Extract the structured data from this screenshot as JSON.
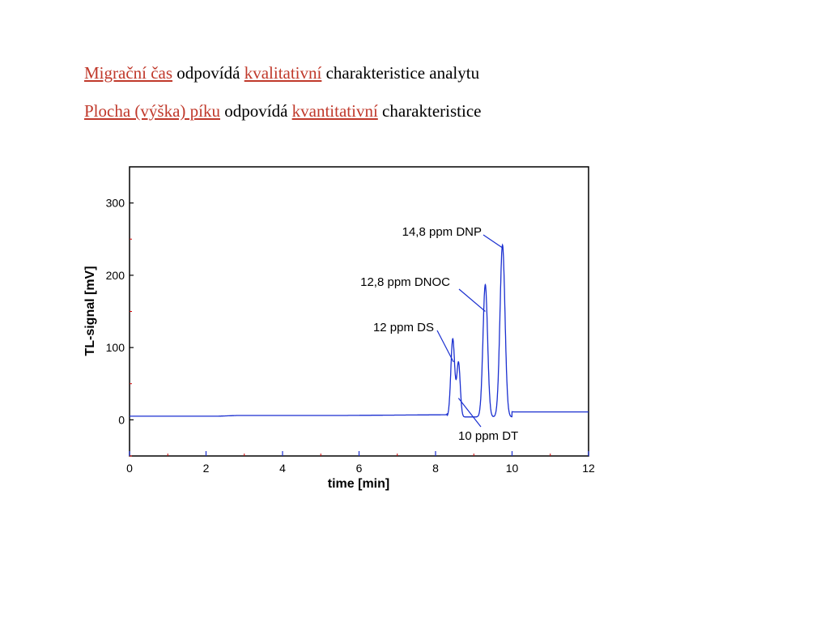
{
  "text": {
    "line1": {
      "migration_time": "Migrační čas",
      "corresponds": " odpovídá ",
      "qualitative": "kvalitativní",
      "rest": " charakteristice analytu"
    },
    "line2": {
      "peak_area": "Plocha (výška) píku",
      "corresponds": " odpovídá ",
      "quantitative": "kvantitativní",
      "rest": " charakteristice"
    }
  },
  "colors": {
    "highlight": "#c0392b",
    "trace": "#1a2fd0",
    "axes": "#000000",
    "minor_ticks": "#cc0000"
  },
  "chart_data": {
    "type": "line",
    "title": "",
    "xlabel": "time [min]",
    "ylabel": "TL-signal [mV]",
    "xlim": [
      0,
      12
    ],
    "ylim": [
      -50,
      350
    ],
    "x_ticks": [
      0,
      2,
      4,
      6,
      8,
      10,
      12
    ],
    "y_ticks": [
      0,
      100,
      200,
      300
    ],
    "grid": false,
    "series": [
      {
        "baseline": [
          [
            0,
            5
          ],
          [
            2.3,
            5
          ],
          [
            2.8,
            6
          ],
          [
            5.5,
            6
          ],
          [
            8.2,
            7
          ],
          [
            8.3,
            7
          ]
        ],
        "peaks": [
          {
            "center": 8.45,
            "height": 108,
            "width": 0.05
          },
          {
            "center": 8.6,
            "height": 75,
            "width": 0.045
          },
          {
            "center": 9.3,
            "height": 183,
            "width": 0.06
          },
          {
            "center": 9.75,
            "height": 238,
            "width": 0.065
          }
        ],
        "tail": [
          [
            10.0,
            11
          ],
          [
            12,
            11
          ]
        ]
      }
    ],
    "annotations": [
      {
        "label": "14,8 ppm DNP",
        "peak_x": 9.75,
        "peak_y": 238
      },
      {
        "label": "12,8 ppm DNOC",
        "peak_x": 9.3,
        "peak_y": 150
      },
      {
        "label": "12 ppm DS",
        "peak_x": 8.47,
        "peak_y": 80
      },
      {
        "label": "10 ppm DT",
        "peak_x": 8.6,
        "peak_y": 30
      }
    ]
  }
}
